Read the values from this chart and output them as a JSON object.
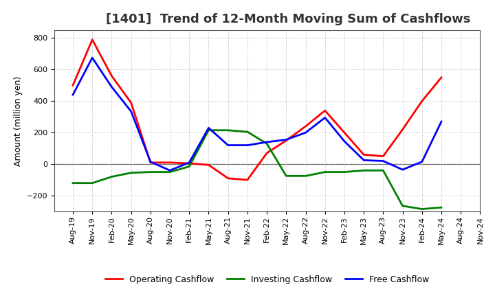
{
  "title": "[1401]  Trend of 12-Month Moving Sum of Cashflows",
  "ylabel": "Amount (million yen)",
  "x_labels": [
    "Aug-19",
    "Nov-19",
    "Feb-20",
    "May-20",
    "Aug-20",
    "Nov-20",
    "Feb-21",
    "May-21",
    "Aug-21",
    "Nov-21",
    "Feb-22",
    "May-22",
    "Aug-22",
    "Nov-22",
    "Feb-23",
    "May-23",
    "Aug-23",
    "Nov-23",
    "Feb-24",
    "May-24",
    "Aug-24",
    "Nov-24"
  ],
  "operating_cashflow": [
    500,
    790,
    560,
    390,
    10,
    10,
    5,
    -5,
    -90,
    -100,
    70,
    150,
    240,
    340,
    200,
    60,
    50,
    220,
    400,
    550,
    null,
    null
  ],
  "investing_cashflow": [
    -120,
    -120,
    -80,
    -55,
    -50,
    -50,
    -15,
    215,
    215,
    205,
    130,
    -75,
    -75,
    -50,
    -50,
    -40,
    -40,
    -265,
    -285,
    -275,
    null,
    null
  ],
  "free_cashflow": [
    440,
    675,
    490,
    335,
    15,
    -40,
    10,
    230,
    120,
    120,
    140,
    155,
    200,
    295,
    145,
    25,
    20,
    -35,
    15,
    270,
    null,
    null
  ],
  "operating_color": "#ff0000",
  "investing_color": "#008000",
  "free_color": "#0000ff",
  "ylim": [
    -300,
    850
  ],
  "yticks": [
    -200,
    0,
    200,
    400,
    600,
    800
  ],
  "bg_color": "#ffffff",
  "grid_color": "#aaaaaa",
  "linewidth": 2.0,
  "title_fontsize": 13,
  "label_fontsize": 9,
  "tick_fontsize": 8,
  "legend_fontsize": 9
}
